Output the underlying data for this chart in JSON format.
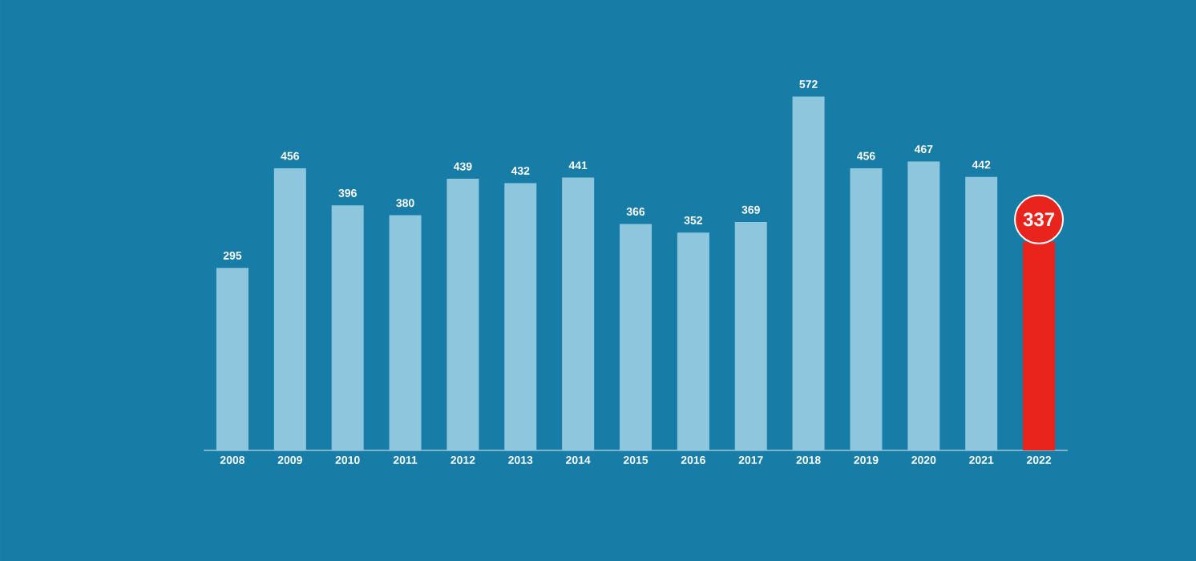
{
  "chart_data": {
    "type": "bar",
    "categories": [
      "2008",
      "2009",
      "2010",
      "2011",
      "2012",
      "2013",
      "2014",
      "2015",
      "2016",
      "2017",
      "2018",
      "2019",
      "2020",
      "2021",
      "2022"
    ],
    "values": [
      295,
      456,
      396,
      380,
      439,
      432,
      441,
      366,
      352,
      369,
      572,
      456,
      467,
      442,
      337
    ],
    "colors": [
      "#8dc6dd",
      "#8dc6dd",
      "#8dc6dd",
      "#8dc6dd",
      "#8dc6dd",
      "#8dc6dd",
      "#8dc6dd",
      "#8dc6dd",
      "#8dc6dd",
      "#8dc6dd",
      "#8dc6dd",
      "#8dc6dd",
      "#8dc6dd",
      "#8dc6dd",
      "#e8241c"
    ],
    "data_labels": true
  }
}
